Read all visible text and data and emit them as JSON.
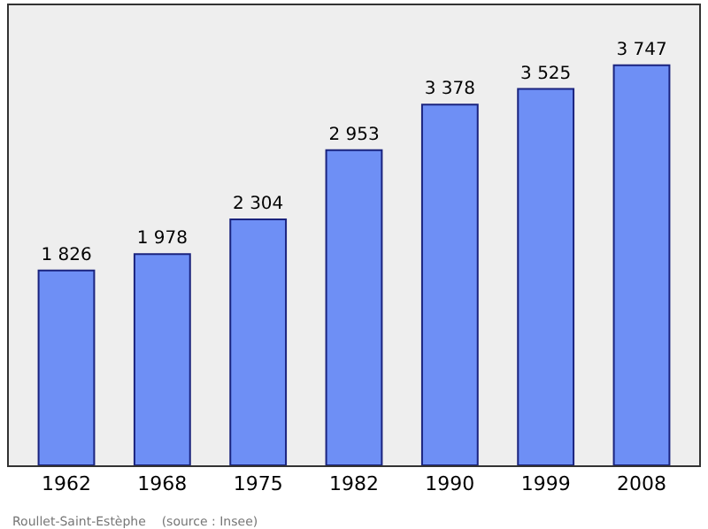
{
  "chart_data": {
    "type": "bar",
    "categories": [
      "1962",
      "1968",
      "1975",
      "1982",
      "1990",
      "1999",
      "2008"
    ],
    "values": [
      1826,
      1978,
      2304,
      2953,
      3378,
      3525,
      3747
    ],
    "value_labels": [
      "1 826",
      "1 978",
      "2 304",
      "2 953",
      "3 378",
      "3 525",
      "3 747"
    ],
    "color": "#6e8ff5",
    "grid": false,
    "legend": false,
    "tick_labels": "x",
    "annotations": [
      "Roullet-Saint-Estèphe    (source : Insee)"
    ]
  }
}
